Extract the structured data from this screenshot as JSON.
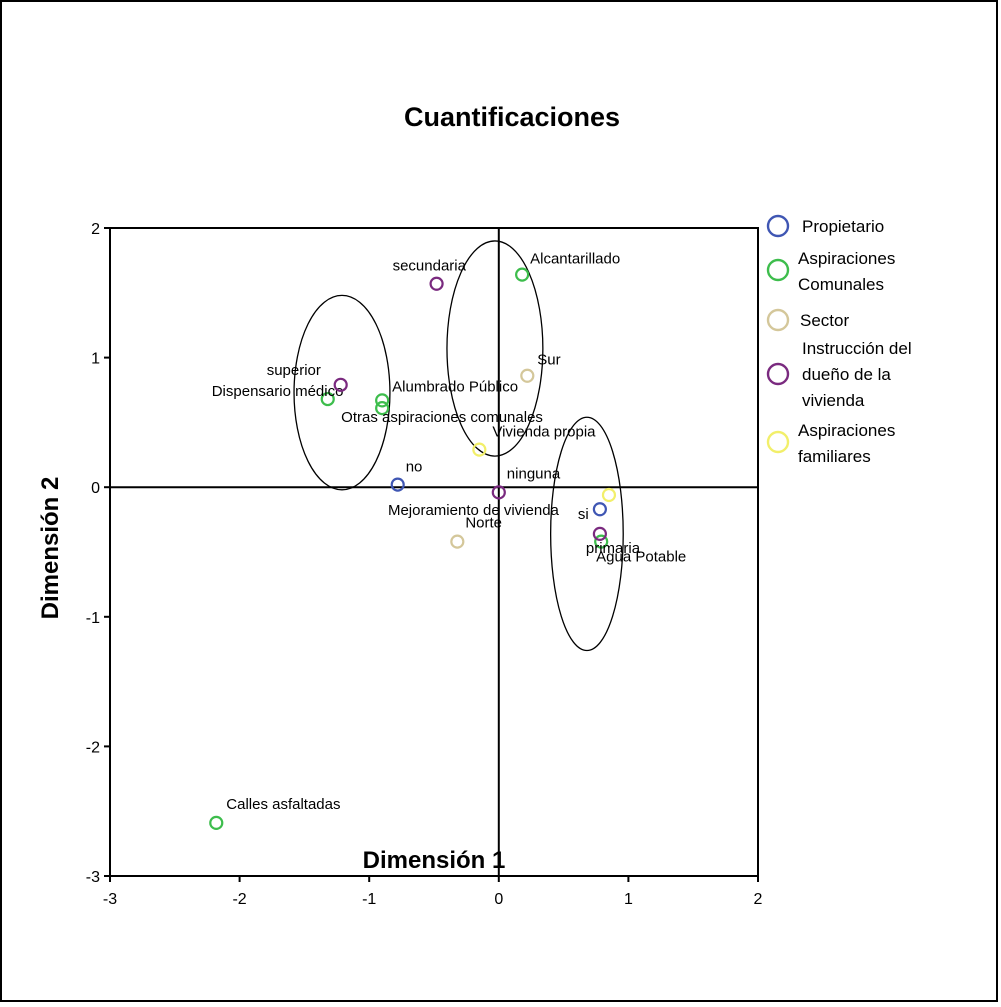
{
  "chart_data": {
    "type": "scatter",
    "title": "Cuantificaciones",
    "xlabel": "Dimensión 1",
    "ylabel": "Dimensión 2",
    "xlim": [
      -3,
      2
    ],
    "ylim": [
      -3,
      2
    ],
    "xticks": [
      -3,
      -2,
      -1,
      0,
      1,
      2
    ],
    "yticks": [
      2,
      1,
      0,
      -1,
      -2,
      -3
    ],
    "grid": false,
    "legend_position": "right",
    "series": [
      {
        "name": "Propietario",
        "color": "#3f56b3",
        "points": [
          {
            "label": "no",
            "x": -0.78,
            "y": 0.02
          },
          {
            "label": "si",
            "x": 0.78,
            "y": -0.17
          }
        ]
      },
      {
        "name": "Aspiraciones Comunales",
        "color": "#3dbd4c",
        "points": [
          {
            "label": "Alcantarillado",
            "x": 0.18,
            "y": 1.64
          },
          {
            "label": "Dispensario médico",
            "x": -1.32,
            "y": 0.68
          },
          {
            "label": "Alumbrado Público",
            "x": -0.9,
            "y": 0.67
          },
          {
            "label": "Otras aspiraciones comunales",
            "x": -0.9,
            "y": 0.61
          },
          {
            "label": "Agua Potable",
            "x": 0.79,
            "y": -0.42
          },
          {
            "label": "Calles asfaltadas",
            "x": -2.18,
            "y": -2.59
          }
        ]
      },
      {
        "name": "Sector",
        "color": "#d4c79a",
        "points": [
          {
            "label": "Sur",
            "x": 0.22,
            "y": 0.86
          },
          {
            "label": "Norte",
            "x": -0.32,
            "y": -0.42
          }
        ]
      },
      {
        "name": "Instrucción del dueño de la vivienda",
        "color": "#7a2a7f",
        "points": [
          {
            "label": "secundaria",
            "x": -0.48,
            "y": 1.57
          },
          {
            "label": "superior",
            "x": -1.22,
            "y": 0.79
          },
          {
            "label": "ninguna",
            "x": 0.0,
            "y": -0.04
          },
          {
            "label": "primaria",
            "x": 0.78,
            "y": -0.36
          }
        ]
      },
      {
        "name": "Aspiraciones familiares",
        "color": "#f2ef6a",
        "points": [
          {
            "label": "Vivienda propia",
            "x": -0.15,
            "y": 0.29
          },
          {
            "label": "Mejoramiento de vivienda",
            "x": 0.85,
            "y": -0.06
          }
        ]
      }
    ],
    "ellipses": [
      {
        "cx": -1.21,
        "cy": 0.73,
        "rx": 0.37,
        "ry": 0.75
      },
      {
        "cx": -0.03,
        "cy": 1.07,
        "rx": 0.37,
        "ry": 0.83
      },
      {
        "cx": 0.68,
        "cy": -0.36,
        "rx": 0.28,
        "ry": 0.9
      }
    ]
  }
}
